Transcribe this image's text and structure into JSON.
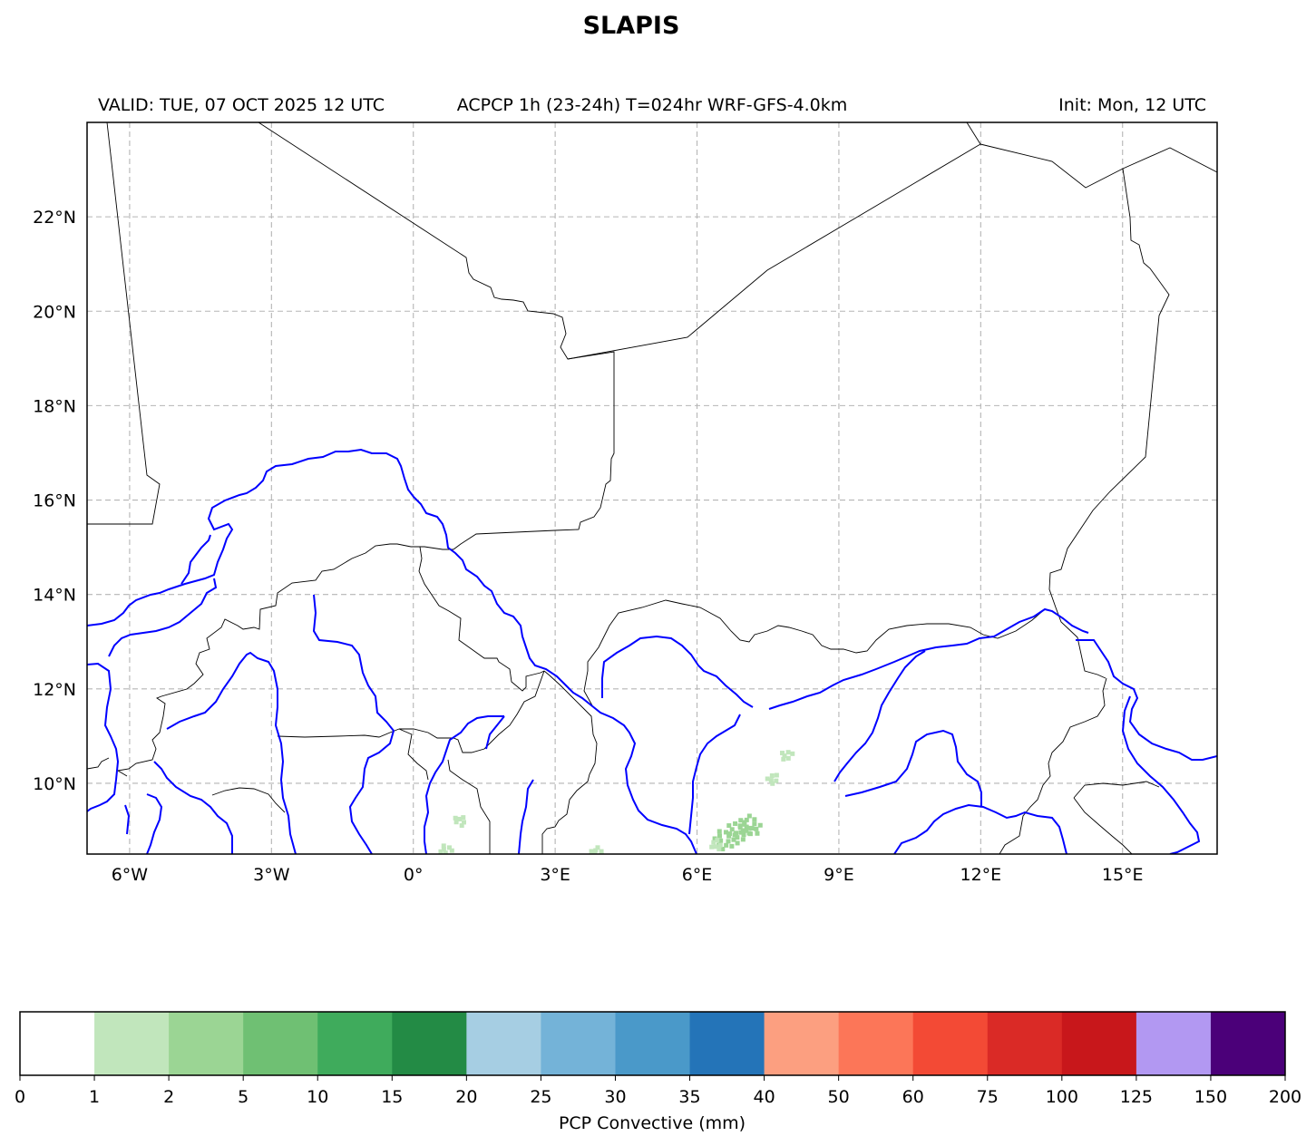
{
  "title": "SLAPIS",
  "subtitle_left": "VALID: TUE, 07 OCT 2025 12 UTC",
  "subtitle_center": "ACPCP 1h (23-24h) T=024hr WRF-GFS-4.0km",
  "subtitle_right": "Init: Mon, 12 UTC",
  "map": {
    "lon_range": [
      -6.9,
      17.0
    ],
    "lat_range": [
      8.5,
      24.0
    ],
    "lon_ticks": [
      "6°W",
      "3°W",
      "0°",
      "3°E",
      "6°E",
      "9°E",
      "12°E",
      "15°E"
    ],
    "lat_ticks": [
      "22°N",
      "20°N",
      "18°N",
      "16°N",
      "14°N",
      "12°N",
      "10°N"
    ],
    "gridlines": "dashed",
    "rivers_color": "#0000ff",
    "borders_color": "#000000"
  },
  "colorbar": {
    "label": "PCP Convective (mm)",
    "boundaries": [
      "0",
      "1",
      "2",
      "5",
      "10",
      "15",
      "20",
      "25",
      "30",
      "35",
      "40",
      "50",
      "60",
      "75",
      "100",
      "125",
      "150",
      "200"
    ],
    "colors": [
      "#ffffff",
      "#c1e6bc",
      "#9bd594",
      "#6fc073",
      "#3fab5c",
      "#238b45",
      "#a6cee3",
      "#74b3d8",
      "#4a99c9",
      "#2474b8",
      "#fc9f80",
      "#fc7658",
      "#f34a35",
      "#da2a26",
      "#c8171b",
      "#b298f2",
      "#4b0079"
    ]
  },
  "chart_data": {
    "type": "heatmap",
    "title": "SLAPIS",
    "variable": "PCP Convective (mm)",
    "xlim": [
      -6.9,
      17.0
    ],
    "ylim": [
      8.5,
      24.0
    ],
    "precip_cells": [
      {
        "lon": 6.9,
        "lat": 9.0,
        "value": 2
      },
      {
        "lon": 6.6,
        "lat": 8.8,
        "value": 2
      },
      {
        "lon": 7.1,
        "lat": 9.1,
        "value": 2
      },
      {
        "lon": 6.4,
        "lat": 8.7,
        "value": 1
      },
      {
        "lon": 7.6,
        "lat": 10.1,
        "value": 1
      },
      {
        "lon": 7.9,
        "lat": 10.6,
        "value": 1
      },
      {
        "lon": 0.7,
        "lat": 8.6,
        "value": 1
      },
      {
        "lon": 3.9,
        "lat": 8.55,
        "value": 1
      },
      {
        "lon": 1.0,
        "lat": 9.2,
        "value": 1
      }
    ]
  }
}
